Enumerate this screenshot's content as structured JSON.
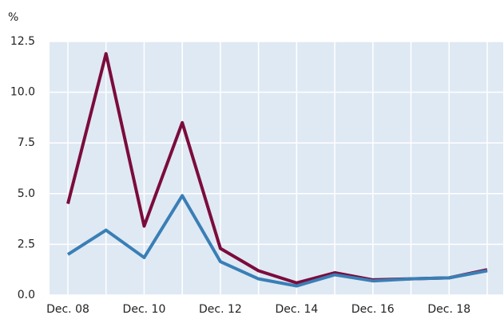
{
  "chart_data": {
    "type": "line",
    "y_unit": "%",
    "categories": [
      "Dec. 08",
      null,
      "Dec. 10",
      null,
      "Dec. 12",
      null,
      "Dec. 14",
      null,
      "Dec. 16",
      null,
      "Dec. 18",
      null
    ],
    "series": [
      {
        "color": "#7b0c3c",
        "values": [
          4.5,
          11.9,
          3.4,
          8.5,
          2.3,
          1.2,
          0.6,
          1.1,
          0.75,
          0.8,
          0.85,
          1.25
        ]
      },
      {
        "color": "#3a7fb6",
        "values": [
          2.0,
          3.2,
          1.85,
          4.9,
          1.65,
          0.8,
          0.45,
          1.0,
          0.7,
          0.8,
          0.85,
          1.2
        ]
      }
    ],
    "ylim": [
      0,
      12.5
    ],
    "yticks": [
      {
        "value": 0,
        "label": "0.0"
      },
      2.5,
      {
        "value": 5,
        "label": "5.0"
      },
      7.5,
      {
        "value": 10,
        "label": "10.0"
      },
      12.5
    ],
    "grid": true,
    "plot_background": "#dfe9f3"
  }
}
